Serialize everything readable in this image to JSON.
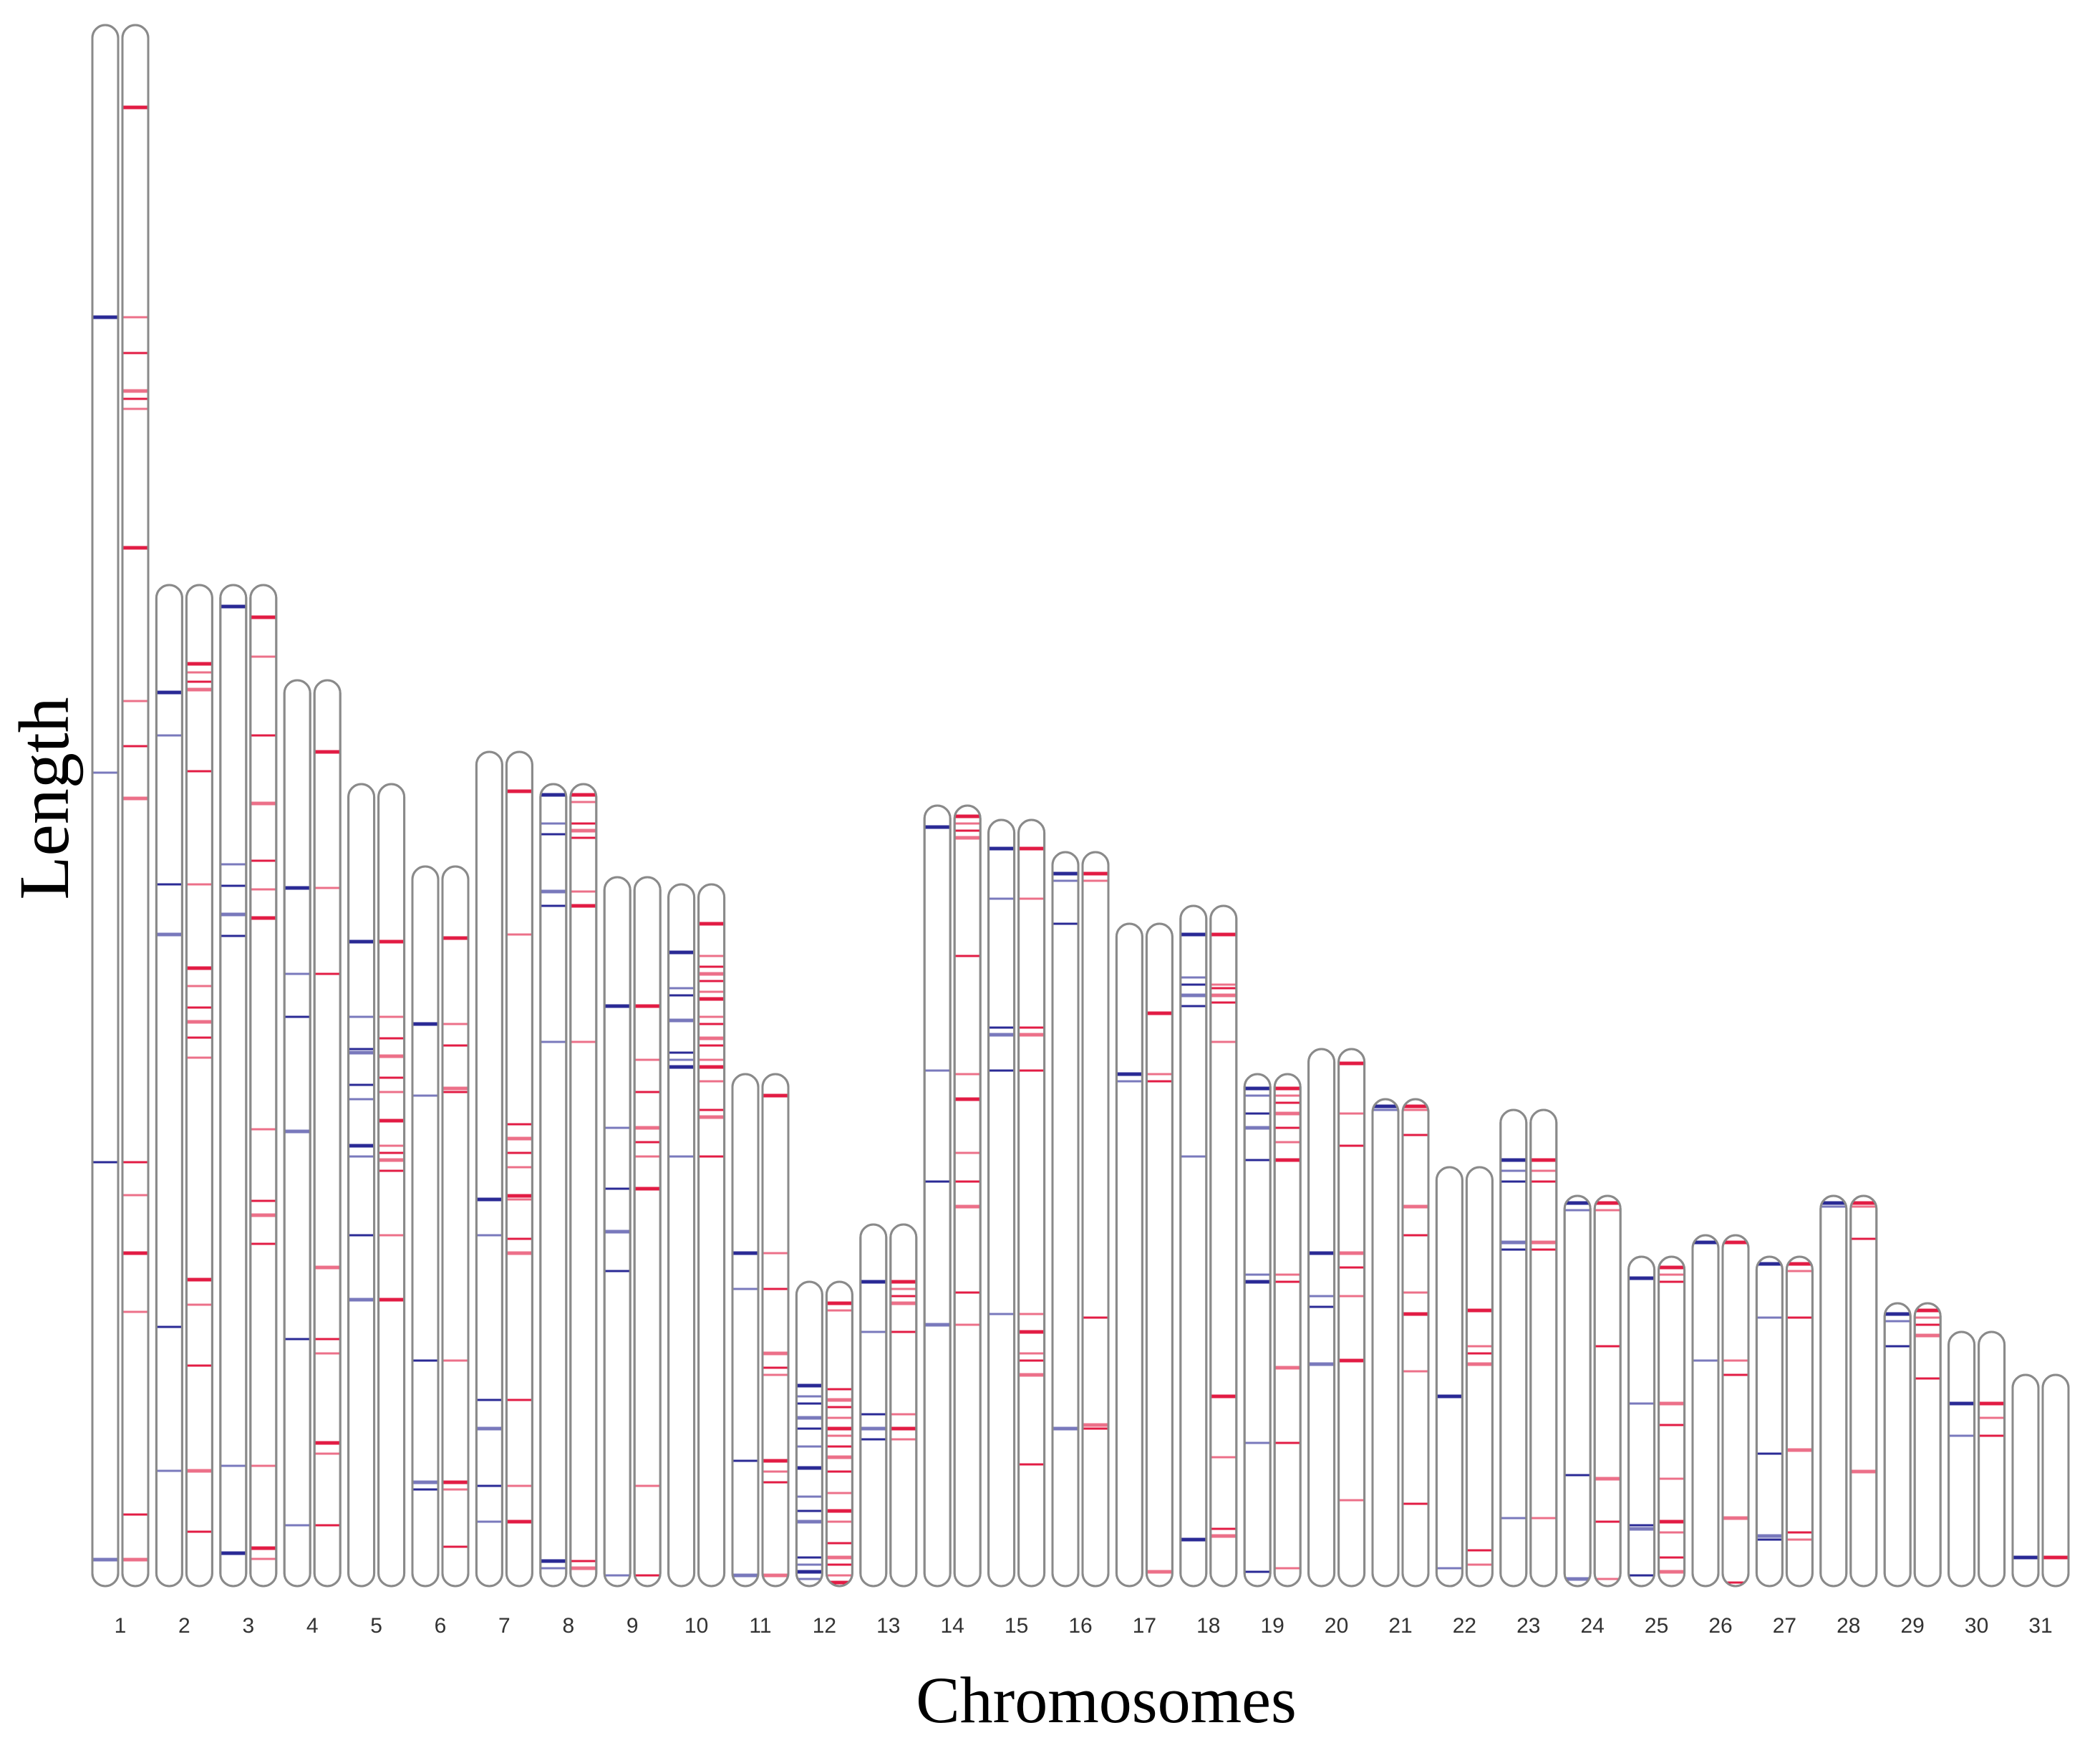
{
  "chart_data": {
    "type": "chromosome-ideogram",
    "xlabel": "Chromosomes",
    "ylabel": "Length",
    "colors": {
      "left": "#1f1f8f",
      "right": "#e0103a",
      "outline": "#8a8a8a"
    },
    "chromosomes": [
      {
        "label": "1",
        "length": 2180,
        "blue": [
          408,
          1044,
          1588,
          2143
        ],
        "red": [
          115,
          408,
          458,
          511,
          522,
          536,
          730,
          944,
          1007,
          1080,
          1588,
          1634,
          1715,
          1797,
          2080,
          2143
        ]
      },
      {
        "label": "2",
        "length": 1398,
        "blue": [
          150,
          210,
          418,
          488,
          1036,
          1237
        ],
        "red": [
          110,
          122,
          135,
          146,
          260,
          418,
          535,
          560,
          590,
          610,
          632,
          660,
          970,
          1005,
          1090,
          1237,
          1322
        ]
      },
      {
        "label": "3",
        "length": 1398,
        "blue": [
          30,
          390,
          420,
          460,
          490,
          1230,
          1352
        ],
        "red": [
          45,
          100,
          210,
          305,
          385,
          425,
          465,
          760,
          860,
          880,
          920,
          1230,
          1345,
          1360
        ]
      },
      {
        "label": "4",
        "length": 1265,
        "blue": [
          290,
          410,
          470,
          630,
          920,
          1180
        ],
        "red": [
          100,
          290,
          410,
          820,
          920,
          940,
          1065,
          1080,
          1180
        ]
      },
      {
        "label": "5",
        "length": 1120,
        "blue": [
          220,
          325,
          370,
          375,
          420,
          440,
          505,
          520,
          630,
          720
        ],
        "red": [
          220,
          325,
          355,
          380,
          410,
          430,
          470,
          505,
          515,
          525,
          540,
          630,
          720
        ]
      },
      {
        "label": "6",
        "length": 1005,
        "blue": [
          220,
          320,
          690,
          860,
          870
        ],
        "red": [
          100,
          220,
          250,
          310,
          315,
          690,
          860,
          870,
          950
        ]
      },
      {
        "label": "7",
        "length": 1165,
        "blue": [
          625,
          675,
          905,
          945,
          1025,
          1075
        ],
        "red": [
          55,
          255,
          520,
          540,
          560,
          580,
          620,
          625,
          680,
          700,
          905,
          1025,
          1075
        ]
      },
      {
        "label": "8",
        "length": 1120,
        "blue": [
          15,
          55,
          70,
          150,
          170,
          360,
          1085,
          1095
        ],
        "red": [
          15,
          25,
          55,
          65,
          75,
          150,
          170,
          360,
          1085,
          1095
        ]
      },
      {
        "label": "9",
        "length": 990,
        "blue": [
          180,
          350,
          435,
          495,
          550,
          975
        ],
        "red": [
          180,
          255,
          300,
          350,
          370,
          390,
          435,
          850,
          975
        ]
      },
      {
        "label": "10",
        "length": 980,
        "blue": [
          95,
          145,
          155,
          190,
          235,
          245,
          255,
          380
        ],
        "red": [
          55,
          100,
          115,
          125,
          135,
          150,
          160,
          185,
          195,
          215,
          225,
          245,
          255,
          275,
          315,
          325,
          380
        ]
      },
      {
        "label": "11",
        "length": 715,
        "blue": [
          250,
          300,
          540,
          700
        ],
        "red": [
          30,
          250,
          300,
          390,
          410,
          420,
          540,
          555,
          570,
          700
        ]
      },
      {
        "label": "12",
        "length": 425,
        "blue": [
          145,
          160,
          170,
          190,
          205,
          230,
          260,
          300,
          320,
          335,
          385,
          395,
          405,
          415
        ],
        "red": [
          30,
          40,
          150,
          165,
          175,
          190,
          205,
          215,
          230,
          245,
          265,
          295,
          320,
          335,
          365,
          385,
          395,
          410,
          420
        ]
      },
      {
        "label": "13",
        "length": 505,
        "blue": [
          80,
          150,
          265,
          285,
          300
        ],
        "red": [
          80,
          90,
          100,
          110,
          150,
          265,
          285,
          300
        ]
      },
      {
        "label": "14",
        "length": 1090,
        "blue": [
          30,
          370,
          525,
          725
        ],
        "red": [
          15,
          25,
          35,
          45,
          210,
          375,
          410,
          485,
          525,
          560,
          680,
          725
        ]
      },
      {
        "label": "15",
        "length": 1070,
        "blue": [
          40,
          110,
          290,
          300,
          350,
          690
        ],
        "red": [
          40,
          110,
          290,
          300,
          350,
          690,
          715,
          745,
          755,
          775,
          900
        ]
      },
      {
        "label": "16",
        "length": 1025,
        "blue": [
          30,
          40,
          100,
          805
        ],
        "red": [
          30,
          40,
          650,
          800,
          805
        ]
      },
      {
        "label": "17",
        "length": 925,
        "blue": [
          210,
          220
        ],
        "red": [
          125,
          210,
          220,
          905
        ]
      },
      {
        "label": "18",
        "length": 950,
        "blue": [
          40,
          100,
          110,
          125,
          140,
          350,
          885
        ],
        "red": [
          40,
          110,
          115,
          125,
          135,
          190,
          685,
          770,
          870,
          880
        ]
      },
      {
        "label": "19",
        "length": 715,
        "blue": [
          20,
          30,
          55,
          75,
          120,
          280,
          290,
          515,
          695
        ],
        "red": [
          20,
          30,
          40,
          55,
          75,
          95,
          120,
          280,
          290,
          410,
          515,
          690
        ]
      },
      {
        "label": "20",
        "length": 750,
        "blue": [
          285,
          345,
          360,
          440
        ],
        "red": [
          20,
          90,
          135,
          285,
          305,
          345,
          435,
          630
        ]
      },
      {
        "label": "21",
        "length": 680,
        "blue": [
          10,
          15
        ],
        "red": [
          10,
          15,
          50,
          150,
          190,
          270,
          300,
          380,
          565
        ]
      },
      {
        "label": "22",
        "length": 585,
        "blue": [
          320,
          560
        ],
        "red": [
          200,
          250,
          260,
          275,
          535,
          555
        ]
      },
      {
        "label": "23",
        "length": 665,
        "blue": [
          70,
          85,
          100,
          185,
          195,
          570
        ],
        "red": [
          70,
          85,
          100,
          185,
          195,
          570
        ]
      },
      {
        "label": "24",
        "length": 545,
        "blue": [
          10,
          20,
          390,
          535
        ],
        "red": [
          10,
          20,
          210,
          395,
          455,
          535
        ]
      },
      {
        "label": "25",
        "length": 460,
        "blue": [
          30,
          205,
          375,
          380,
          445
        ],
        "red": [
          15,
          25,
          35,
          205,
          235,
          310,
          370,
          385,
          420,
          440
        ]
      },
      {
        "label": "26",
        "length": 490,
        "blue": [
          10,
          175
        ],
        "red": [
          10,
          175,
          195,
          395,
          485
        ]
      },
      {
        "label": "27",
        "length": 460,
        "blue": [
          10,
          85,
          275,
          390,
          395
        ],
        "red": [
          10,
          20,
          85,
          270,
          385,
          395
        ]
      },
      {
        "label": "28",
        "length": 545,
        "blue": [
          10,
          15
        ],
        "red": [
          10,
          15,
          60,
          385
        ]
      },
      {
        "label": "29",
        "length": 395,
        "blue": [
          15,
          25,
          60
        ],
        "red": [
          10,
          20,
          30,
          45,
          105
        ]
      },
      {
        "label": "30",
        "length": 355,
        "blue": [
          100,
          145
        ],
        "red": [
          100,
          120,
          145
        ]
      },
      {
        "label": "31",
        "length": 295,
        "blue": [
          255
        ],
        "red": [
          255
        ]
      }
    ]
  }
}
